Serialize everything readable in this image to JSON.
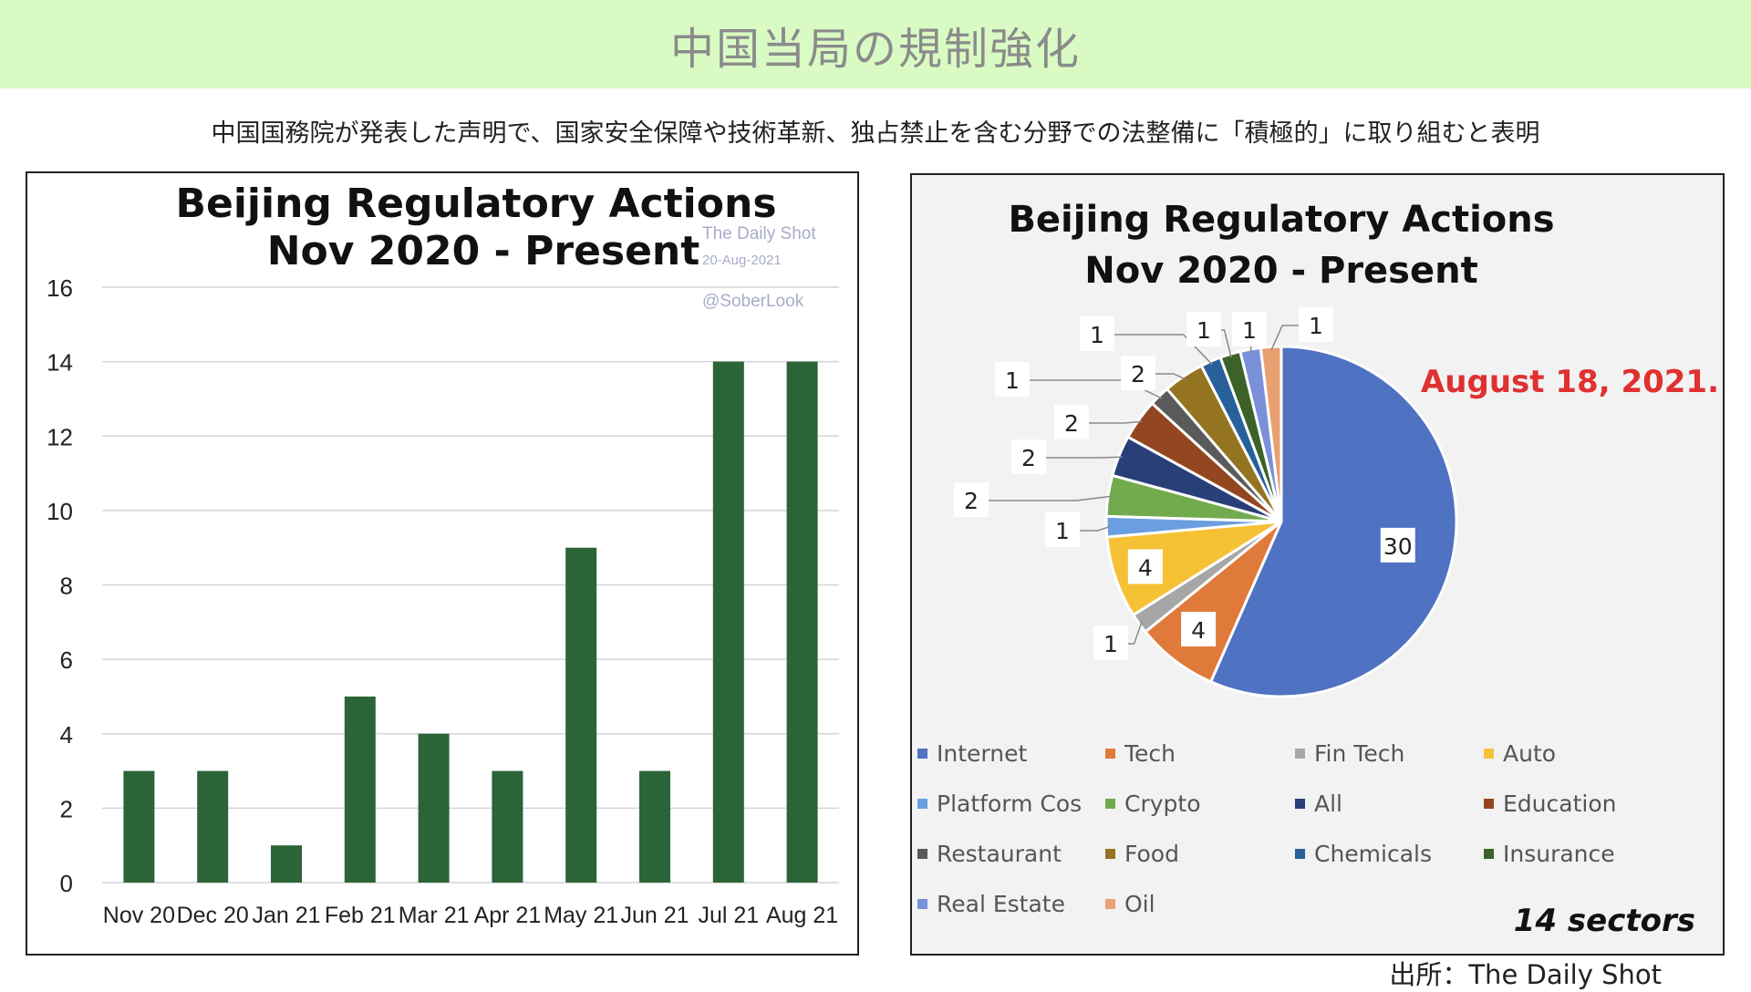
{
  "header": {
    "title": "中国当局の規制強化"
  },
  "subtitle": "中国国務院が発表した声明で、国家安全保障や技術革新、独占禁止を含む分野での法整備に「積極的」に取り組むと表明",
  "source": "出所：The Daily Shot",
  "bar_chart": {
    "title_line1": "Beijing Regulatory Actions",
    "title_line2": "Nov 2020 - Present",
    "watermark1": "The Daily Shot",
    "watermark2": "20-Aug-2021",
    "watermark3": "@SoberLook"
  },
  "pie_chart": {
    "title_line1": "Beijing Regulatory Actions",
    "title_line2": "Nov 2020 - Present",
    "annotation": "August 18, 2021.",
    "sectors_note": "14 sectors"
  },
  "chart_data": [
    {
      "type": "bar",
      "title": "Beijing Regulatory Actions Nov 2020 - Present",
      "categories": [
        "Nov 20",
        "Dec 20",
        "Jan 21",
        "Feb 21",
        "Mar 21",
        "Apr 21",
        "May 21",
        "Jun 21",
        "Jul 21",
        "Aug 21"
      ],
      "values": [
        3,
        3,
        1,
        5,
        4,
        3,
        9,
        3,
        14,
        14
      ],
      "ylim": [
        0,
        16
      ],
      "yticks": [
        0,
        2,
        4,
        6,
        8,
        10,
        12,
        14,
        16
      ],
      "grid": true,
      "color": "#2b6437"
    },
    {
      "type": "pie",
      "title": "Beijing Regulatory Actions Nov 2020 - Present",
      "labels": [
        "Internet",
        "Tech",
        "Fin Tech",
        "Auto",
        "Platform Cos",
        "Crypto",
        "All",
        "Education",
        "Restaurant",
        "Food",
        "Chemicals",
        "Insurance",
        "Real Estate",
        "Oil"
      ],
      "values": [
        30,
        4,
        1,
        4,
        1,
        2,
        2,
        2,
        1,
        2,
        1,
        1,
        1,
        1
      ],
      "colors": [
        "#4f72c2",
        "#e07a3a",
        "#a6a6a6",
        "#f5c135",
        "#6a9ee0",
        "#72ab4e",
        "#283f78",
        "#944621",
        "#5a5a5a",
        "#947420",
        "#28609a",
        "#3c6229",
        "#7a90d8",
        "#e8a070"
      ],
      "legend": "bottom"
    }
  ]
}
